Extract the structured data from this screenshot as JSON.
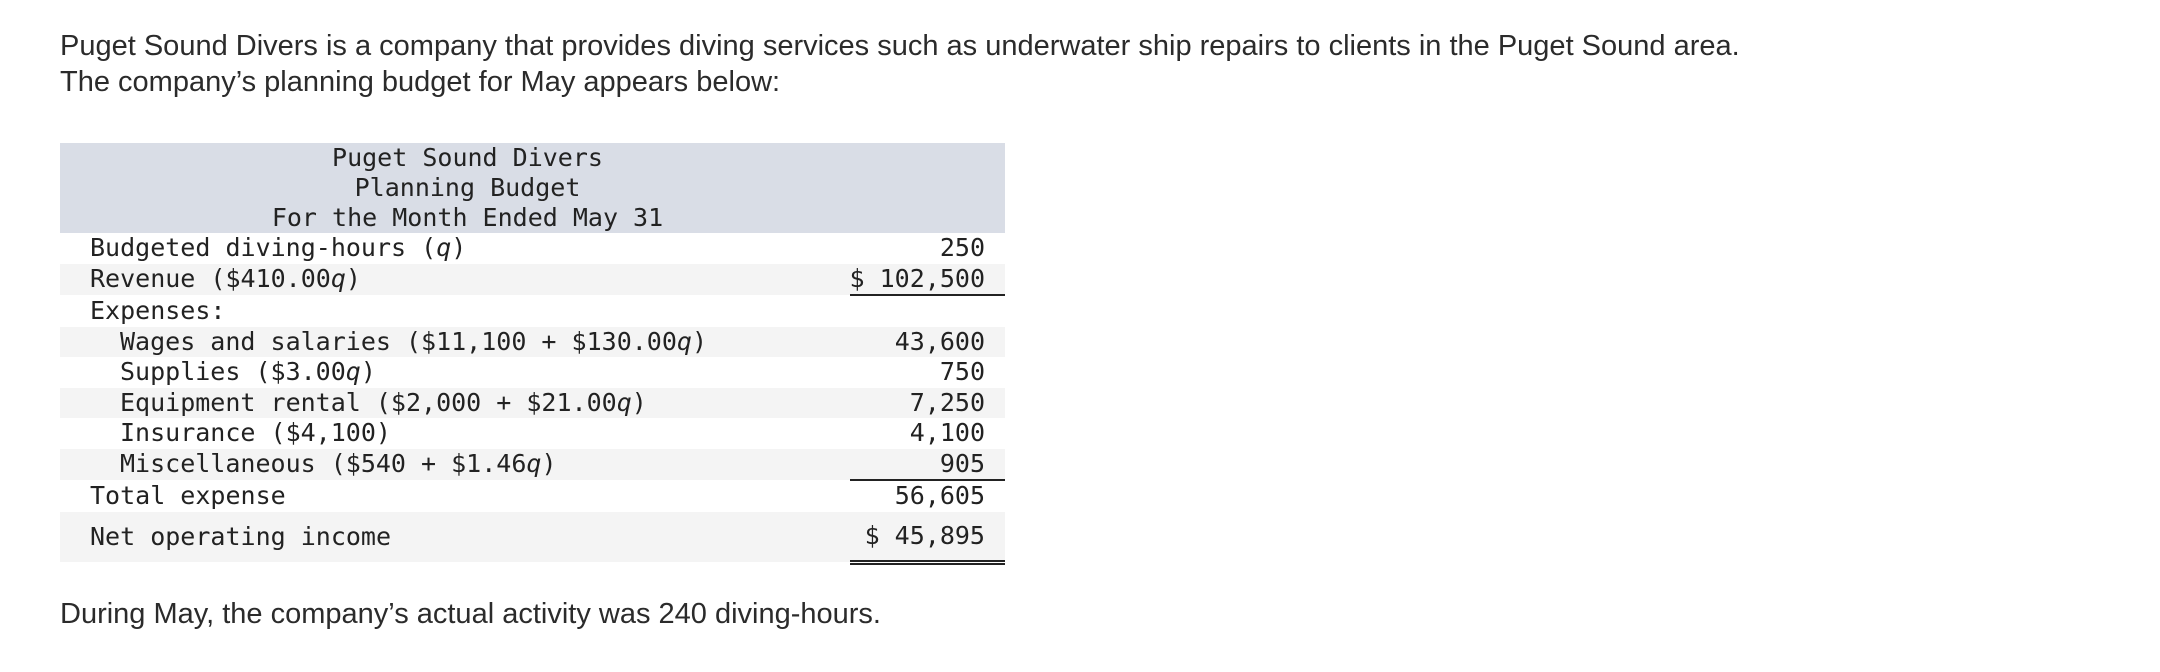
{
  "intro": {
    "lines": [
      "Puget Sound Divers is a company that provides diving services such as underwater ship repairs to clients in the Puget Sound area.",
      "The company’s planning budget for May appears below:"
    ]
  },
  "table": {
    "title": [
      "Puget Sound Divers",
      "Planning Budget",
      "For the Month Ended May 31"
    ],
    "rows": [
      {
        "label": [
          "Budgeted diving-hours (",
          "q",
          ")"
        ],
        "value": "250"
      },
      {
        "label": [
          "Revenue ($410.00",
          "q",
          ")"
        ],
        "value": "$ 102,500"
      },
      {
        "label": [
          "Expenses:"
        ]
      },
      {
        "label": [
          "Wages and salaries ($11,100 + $130.00",
          "q",
          ")"
        ],
        "value": "43,600"
      },
      {
        "label": [
          "Supplies ($3.00",
          "q",
          ")"
        ],
        "value": "750"
      },
      {
        "label": [
          "Equipment rental ($2,000 + $21.00",
          "q",
          ")"
        ],
        "value": "7,250"
      },
      {
        "label": [
          "Insurance ($4,100)"
        ],
        "value": "4,100"
      },
      {
        "label": [
          "Miscellaneous ($540 + $1.46",
          "q",
          ")"
        ],
        "value": "905"
      },
      {
        "label": [
          "Total expense"
        ],
        "value": "56,605"
      },
      {
        "label": [
          "Net operating income"
        ],
        "value": "$ 45,895"
      }
    ]
  },
  "closing": "During May, the company’s actual activity was 240 diving-hours."
}
